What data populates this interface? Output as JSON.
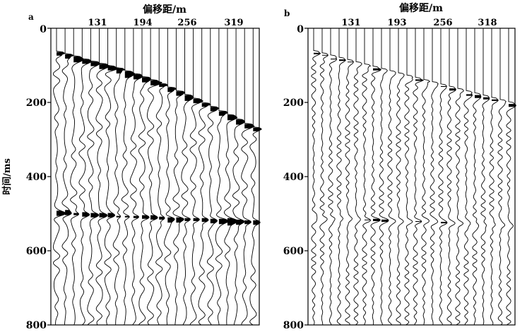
{
  "chart_data": [
    {
      "type": "seismic-wiggle",
      "panel_label": "a",
      "xlabel": "偏移距/m",
      "ylabel": "时间/ms",
      "x_ticks": [
        "131",
        "194",
        "256",
        "319"
      ],
      "y_ticks": [
        "0",
        "200",
        "400",
        "600",
        "800"
      ],
      "ylim": [
        0,
        800
      ],
      "trace_count": 24,
      "first_break_ms": [
        70,
        76,
        82,
        89,
        95,
        101,
        108,
        114,
        122,
        129,
        137,
        146,
        155,
        165,
        175,
        186,
        196,
        207,
        218,
        229,
        240,
        252,
        263,
        274
      ],
      "reflection_ms": 500,
      "style": "variable-area"
    },
    {
      "type": "seismic-wiggle",
      "panel_label": "b",
      "xlabel": "偏移距/m",
      "ylabel": "",
      "x_ticks": [
        "131",
        "193",
        "256",
        "318"
      ],
      "y_ticks": [
        "0",
        "200",
        "400",
        "600",
        "800"
      ],
      "ylim": [
        0,
        800
      ],
      "trace_count": 24,
      "first_break_ms": [
        68,
        74,
        80,
        86,
        92,
        98,
        104,
        110,
        116,
        122,
        128,
        134,
        140,
        146,
        152,
        158,
        164,
        170,
        176,
        182,
        188,
        194,
        200,
        206
      ],
      "reflection_ms": 510,
      "style": "wiggle"
    }
  ]
}
